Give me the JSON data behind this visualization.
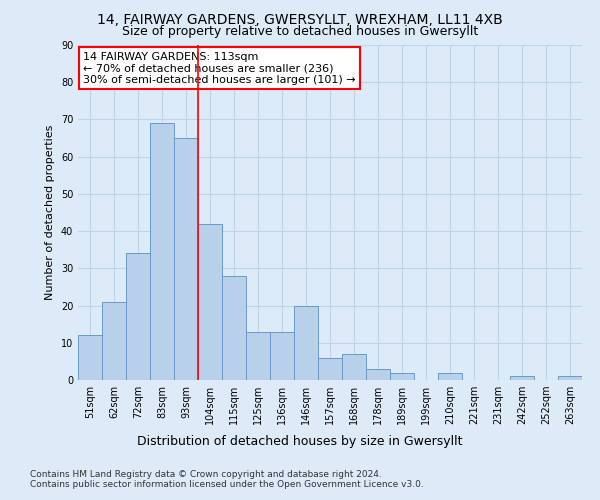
{
  "title1": "14, FAIRWAY GARDENS, GWERSYLLT, WREXHAM, LL11 4XB",
  "title2": "Size of property relative to detached houses in Gwersyllt",
  "xlabel": "Distribution of detached houses by size in Gwersyllt",
  "ylabel": "Number of detached properties",
  "bar_labels": [
    "51sqm",
    "62sqm",
    "72sqm",
    "83sqm",
    "93sqm",
    "104sqm",
    "115sqm",
    "125sqm",
    "136sqm",
    "146sqm",
    "157sqm",
    "168sqm",
    "178sqm",
    "189sqm",
    "199sqm",
    "210sqm",
    "221sqm",
    "231sqm",
    "242sqm",
    "252sqm",
    "263sqm"
  ],
  "bar_values": [
    12,
    21,
    34,
    69,
    65,
    42,
    28,
    13,
    13,
    20,
    6,
    7,
    3,
    2,
    0,
    2,
    0,
    0,
    1,
    0,
    1
  ],
  "bar_color": "#b8d0ea",
  "bar_edge_color": "#6699cc",
  "annotation_text_line1": "14 FAIRWAY GARDENS: 113sqm",
  "annotation_text_line2": "← 70% of detached houses are smaller (236)",
  "annotation_text_line3": "30% of semi-detached houses are larger (101) →",
  "annotation_box_color": "white",
  "annotation_box_edge": "red",
  "vline_color": "red",
  "vline_x_index": 5,
  "ylim": [
    0,
    90
  ],
  "yticks": [
    0,
    10,
    20,
    30,
    40,
    50,
    60,
    70,
    80,
    90
  ],
  "grid_color": "#c0d4e8",
  "background_color": "#ddeaf7",
  "footer1": "Contains HM Land Registry data © Crown copyright and database right 2024.",
  "footer2": "Contains public sector information licensed under the Open Government Licence v3.0.",
  "title1_fontsize": 10,
  "title2_fontsize": 9,
  "xlabel_fontsize": 9,
  "ylabel_fontsize": 8,
  "tick_fontsize": 7,
  "footer_fontsize": 6.5,
  "annot_fontsize": 8
}
